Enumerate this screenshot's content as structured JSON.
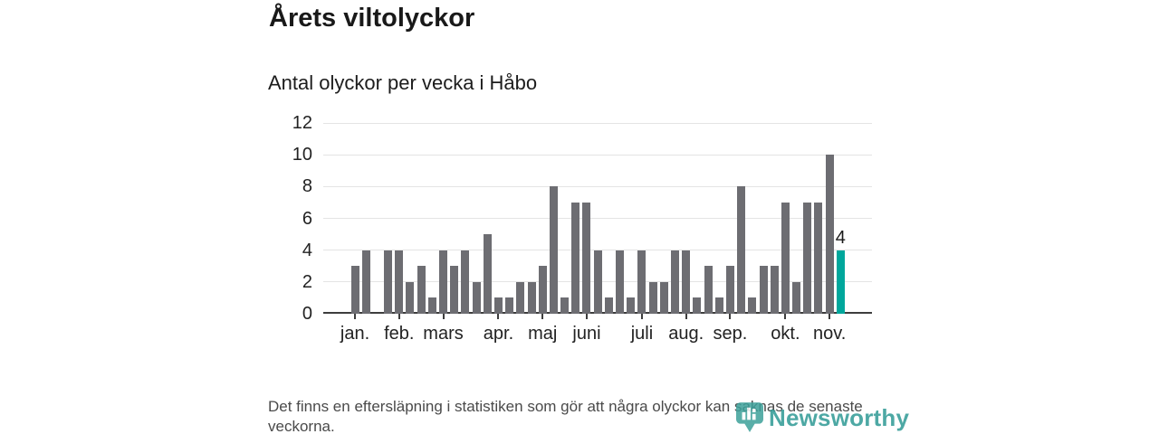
{
  "header": {
    "title": "Årets viltolyckor",
    "subtitle": "Antal olyckor per vecka i Håbo"
  },
  "footer": {
    "note": "Det finns en eftersläpning i statistiken som gör att några olyckor kan saknas de senaste veckorna."
  },
  "branding": {
    "logo_text": "Newsworthy",
    "logo_icon": "newsworthy-pin-barchart-icon",
    "logo_color": "#3da09a"
  },
  "chart_data": {
    "type": "bar",
    "title": "Årets viltolyckor",
    "subtitle": "Antal olyckor per vecka i Håbo",
    "x_unit": "vecka (week of year)",
    "values": [
      3,
      4,
      0,
      4,
      4,
      2,
      3,
      1,
      4,
      3,
      4,
      2,
      5,
      1,
      1,
      2,
      2,
      3,
      8,
      1,
      7,
      7,
      4,
      1,
      4,
      1,
      4,
      2,
      2,
      4,
      4,
      1,
      3,
      1,
      3,
      8,
      1,
      3,
      3,
      7,
      2,
      7,
      7,
      10,
      4
    ],
    "ylim": [
      0,
      12
    ],
    "yticks": [
      0,
      2,
      4,
      6,
      8,
      10,
      12
    ],
    "grid": "horizontal",
    "bar_color": "#6d6d72",
    "highlight_last": true,
    "highlight_color": "#00a79c",
    "last_value_label": "4",
    "month_ticks": [
      {
        "label": "jan.",
        "week": 1
      },
      {
        "label": "feb.",
        "week": 5
      },
      {
        "label": "mars",
        "week": 9
      },
      {
        "label": "apr.",
        "week": 14
      },
      {
        "label": "maj",
        "week": 18
      },
      {
        "label": "juni",
        "week": 22
      },
      {
        "label": "juli",
        "week": 27
      },
      {
        "label": "aug.",
        "week": 31
      },
      {
        "label": "sep.",
        "week": 35
      },
      {
        "label": "okt.",
        "week": 40
      },
      {
        "label": "nov.",
        "week": 44
      }
    ]
  }
}
